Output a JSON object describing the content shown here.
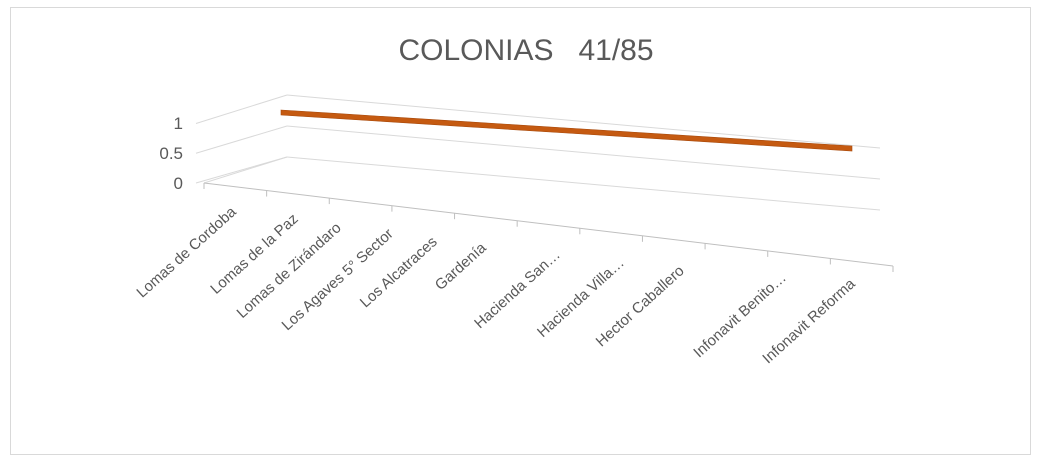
{
  "chart_data": {
    "type": "area",
    "title": "COLONIAS   41/85",
    "categories": [
      "Lomas de Cordoba",
      "Lomas de la Paz",
      "Lomas de Zirándaro",
      "Los Agaves 5° Sector",
      "Los Alcatraces",
      "Gardenía",
      "Hacienda San…",
      "Hacienda Villa…",
      "Hector Caballero",
      "Infonavit Benito…",
      "Infonavit Reforma"
    ],
    "series": [
      {
        "values": [
          1,
          1,
          1,
          1,
          1,
          1,
          1,
          1,
          1,
          1,
          1
        ],
        "color": "#c55a11"
      }
    ],
    "y_ticks": [
      "0",
      "0.5",
      "1"
    ],
    "ylim": [
      0,
      1
    ],
    "grid": true,
    "legend": "none"
  }
}
